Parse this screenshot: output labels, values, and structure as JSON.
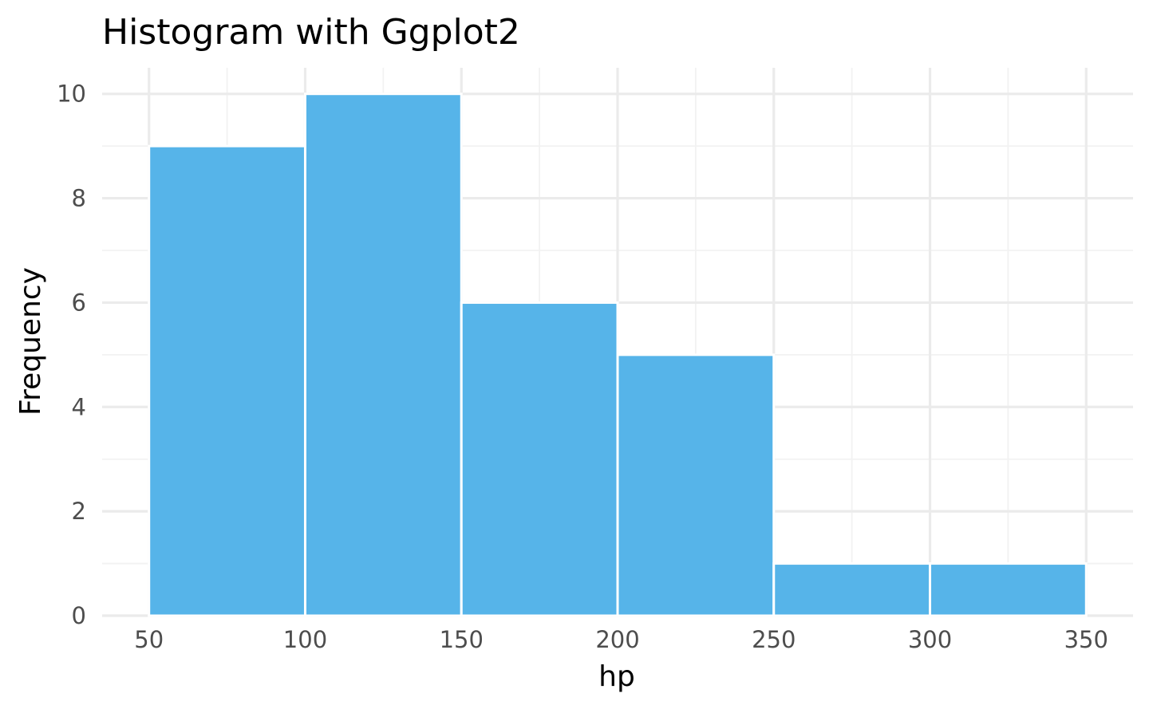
{
  "chart_data": {
    "type": "bar",
    "title": "Histogram with Ggplot2",
    "xlabel": "hp",
    "ylabel": "Frequency",
    "bins": [
      {
        "x0": 50,
        "x1": 100,
        "count": 9
      },
      {
        "x0": 100,
        "x1": 150,
        "count": 10
      },
      {
        "x0": 150,
        "x1": 200,
        "count": 6
      },
      {
        "x0": 200,
        "x1": 250,
        "count": 5
      },
      {
        "x0": 250,
        "x1": 300,
        "count": 1
      },
      {
        "x0": 300,
        "x1": 350,
        "count": 1
      }
    ],
    "xlim": [
      35,
      365
    ],
    "ylim": [
      0,
      10.5
    ],
    "x_ticks": [
      50,
      100,
      150,
      200,
      250,
      300,
      350
    ],
    "y_ticks": [
      0,
      2,
      4,
      6,
      8,
      10
    ],
    "grid": true,
    "legend": "none",
    "bar_color": "#56B4E9",
    "background": "#ffffff"
  }
}
